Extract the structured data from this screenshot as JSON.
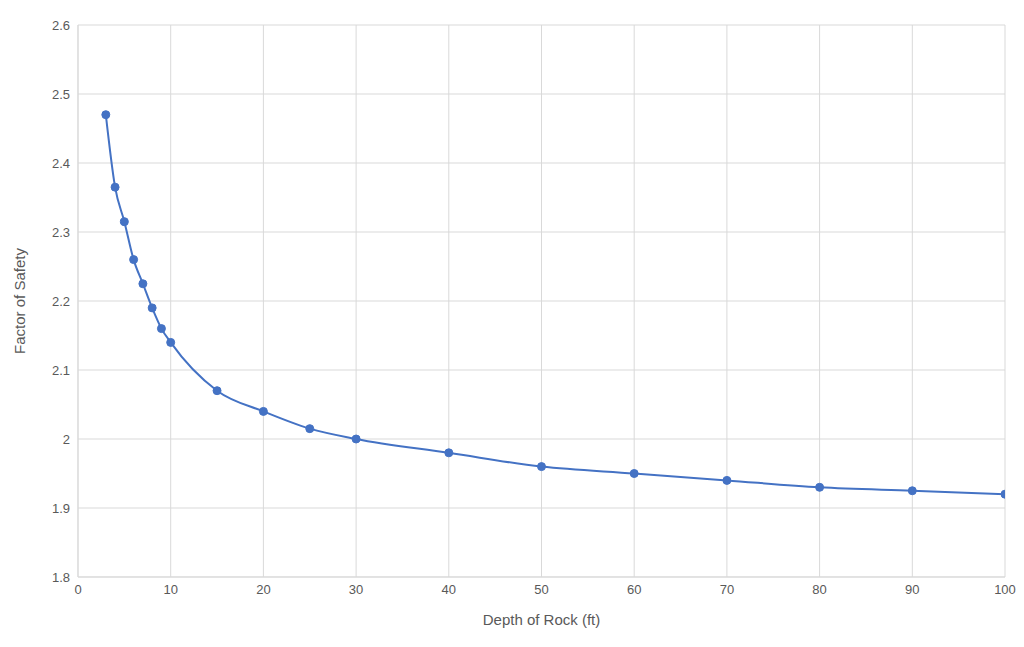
{
  "chart_data": {
    "type": "line",
    "x_label": "Depth of Rock (ft)",
    "y_label": "Factor of Safety",
    "x": [
      3,
      4,
      5,
      6,
      7,
      8,
      9,
      10,
      15,
      20,
      25,
      30,
      40,
      50,
      60,
      70,
      80,
      90,
      100
    ],
    "series": [
      {
        "name": "Factor of Safety",
        "color": "#4472c4",
        "marker": "circle",
        "line_style": "solid",
        "values": [
          2.47,
          2.365,
          2.315,
          2.26,
          2.225,
          2.19,
          2.16,
          2.14,
          2.07,
          2.04,
          2.015,
          2.0,
          1.98,
          1.96,
          1.95,
          1.94,
          1.93,
          1.925,
          1.92
        ]
      }
    ],
    "xlim": [
      0,
      100
    ],
    "xticks": [
      0,
      10,
      20,
      30,
      40,
      50,
      60,
      70,
      80,
      90,
      100
    ],
    "ylim": [
      1.8,
      2.6
    ],
    "yticks": [
      1.8,
      1.9,
      2,
      2.1,
      2.2,
      2.3,
      2.4,
      2.5,
      2.6
    ],
    "grid": true
  }
}
